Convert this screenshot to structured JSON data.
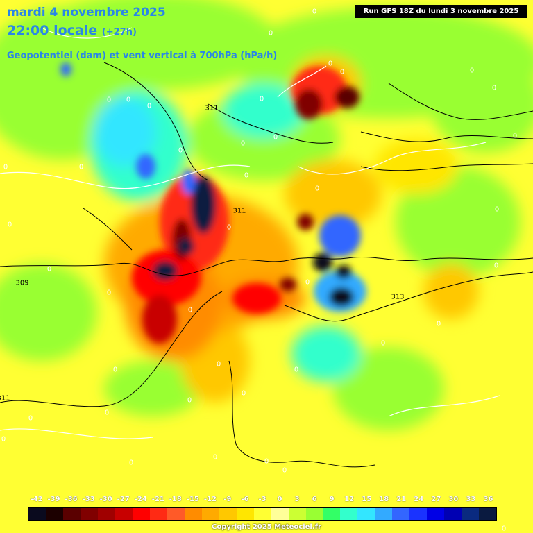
{
  "header": {
    "date_line": "mardi 4 novembre 2025",
    "time_line": "22:00 locale",
    "time_offset": "(+27h)",
    "variable_line": "Geopotentiel (dam) et vent vertical à 700hPa (hPa/h)",
    "run_label": "Run GFS 18Z du lundi 3 novembre 2025"
  },
  "legend": {
    "ticks": [
      "-42",
      "-39",
      "-36",
      "-33",
      "-30",
      "-27",
      "-24",
      "-21",
      "-18",
      "-15",
      "-12",
      "-9",
      "-6",
      "-3",
      "0",
      "3",
      "6",
      "9",
      "12",
      "15",
      "18",
      "21",
      "24",
      "27",
      "30",
      "33",
      "36"
    ],
    "colors": [
      "#0a0a1e",
      "#1c0000",
      "#5a0000",
      "#800000",
      "#a00000",
      "#c80000",
      "#ff0000",
      "#ff2a14",
      "#ff5a28",
      "#ff8c00",
      "#ffaa00",
      "#ffc800",
      "#ffe600",
      "#ffff33",
      "#ffff99",
      "#ccff33",
      "#99ff33",
      "#33ff66",
      "#33ffcc",
      "#33e6ff",
      "#33aaff",
      "#3366ff",
      "#1a33ff",
      "#0000e6",
      "#0000b3",
      "#0a2a80",
      "#0a1a40"
    ]
  },
  "copyright": "Copyright 2025 Meteociel.fr",
  "geopotential_labels": [
    "311",
    "309",
    "311",
    "313"
  ],
  "zero_label": "0"
}
